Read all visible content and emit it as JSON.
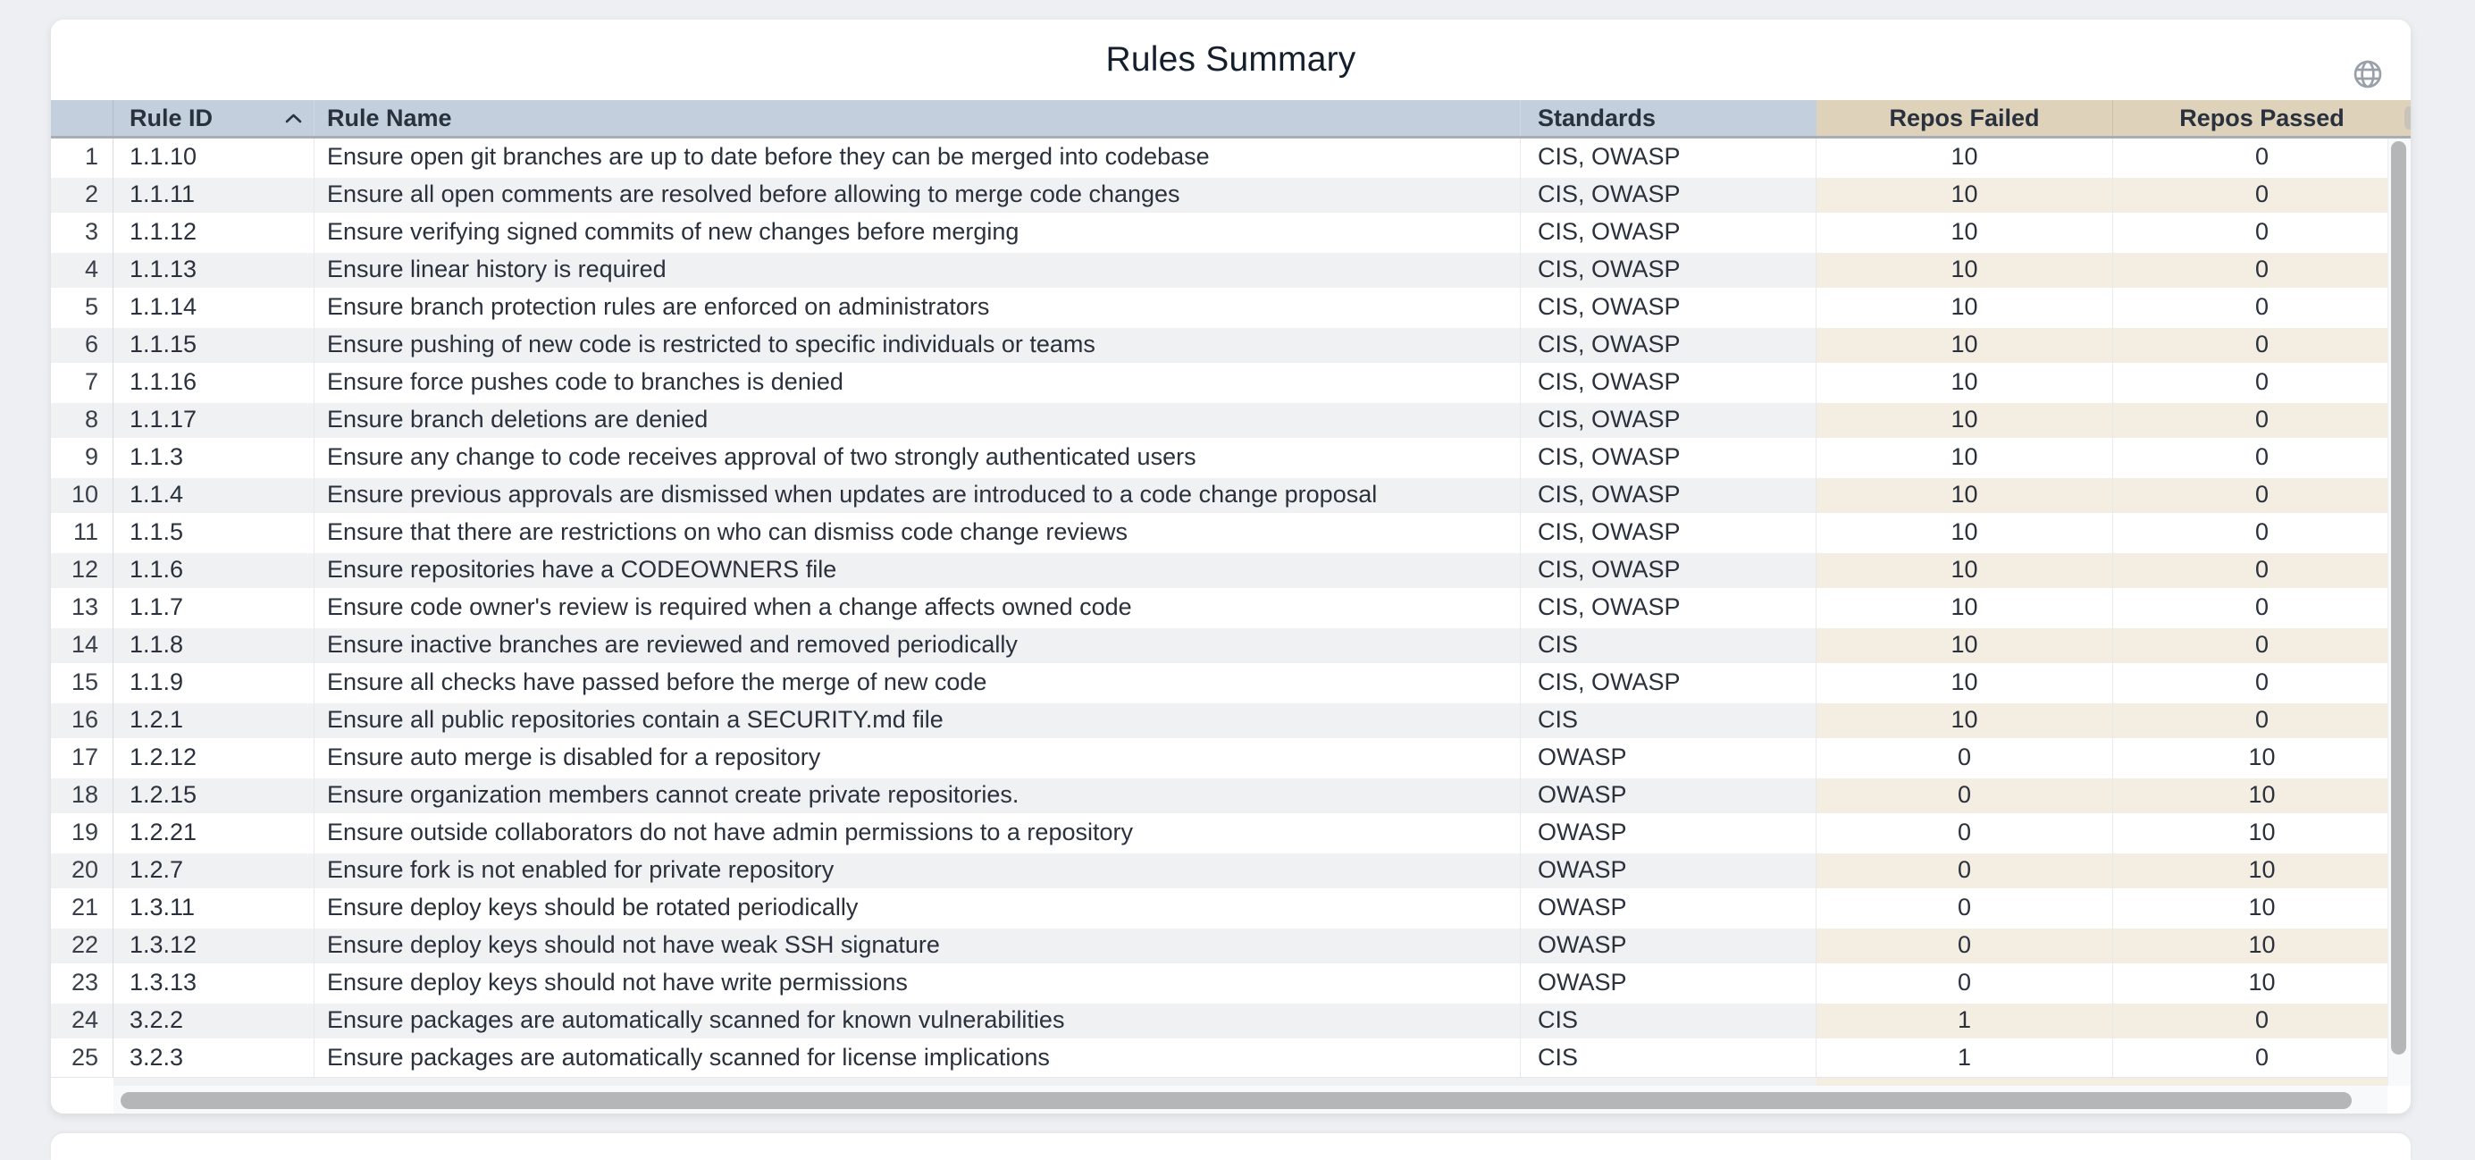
{
  "header": {
    "title": "Rules Summary",
    "globe_icon": "globe-icon"
  },
  "theme": {
    "page_bg": "#edeff2",
    "header_blue": "#c3cfdc",
    "header_tan": "#dfd2ba",
    "stripe_gray": "#f0f1f2",
    "stripe_beige": "#f4ede2",
    "scroll_thumb": "#b4b6b8",
    "title_color": "#141e2c",
    "text_color": "#2a313c"
  },
  "table": {
    "sort": {
      "column": "rule_id",
      "direction": "asc",
      "icon": "chevron-up-icon"
    },
    "columns": [
      {
        "key": "num",
        "label": ""
      },
      {
        "key": "rule_id",
        "label": "Rule ID"
      },
      {
        "key": "rule_name",
        "label": "Rule Name"
      },
      {
        "key": "standards",
        "label": "Standards"
      },
      {
        "key": "failed",
        "label": "Repos Failed"
      },
      {
        "key": "passed",
        "label": "Repos Passed"
      }
    ],
    "rows": [
      {
        "num": 1,
        "rule_id": "1.1.10",
        "rule_name": "Ensure open git branches are up to date before they can be merged into codebase",
        "standards": "CIS, OWASP",
        "failed": 10,
        "passed": 0
      },
      {
        "num": 2,
        "rule_id": "1.1.11",
        "rule_name": "Ensure all open comments are resolved before allowing to merge code changes",
        "standards": "CIS, OWASP",
        "failed": 10,
        "passed": 0
      },
      {
        "num": 3,
        "rule_id": "1.1.12",
        "rule_name": "Ensure verifying signed commits of new changes before merging",
        "standards": "CIS, OWASP",
        "failed": 10,
        "passed": 0
      },
      {
        "num": 4,
        "rule_id": "1.1.13",
        "rule_name": "Ensure linear history is required",
        "standards": "CIS, OWASP",
        "failed": 10,
        "passed": 0
      },
      {
        "num": 5,
        "rule_id": "1.1.14",
        "rule_name": "Ensure branch protection rules are enforced on administrators",
        "standards": "CIS, OWASP",
        "failed": 10,
        "passed": 0
      },
      {
        "num": 6,
        "rule_id": "1.1.15",
        "rule_name": "Ensure pushing of new code is restricted to specific individuals or teams",
        "standards": "CIS, OWASP",
        "failed": 10,
        "passed": 0
      },
      {
        "num": 7,
        "rule_id": "1.1.16",
        "rule_name": "Ensure force pushes code to branches is denied",
        "standards": "CIS, OWASP",
        "failed": 10,
        "passed": 0
      },
      {
        "num": 8,
        "rule_id": "1.1.17",
        "rule_name": "Ensure branch deletions are denied",
        "standards": "CIS, OWASP",
        "failed": 10,
        "passed": 0
      },
      {
        "num": 9,
        "rule_id": "1.1.3",
        "rule_name": "Ensure any change to code receives approval of two strongly authenticated users",
        "standards": "CIS, OWASP",
        "failed": 10,
        "passed": 0
      },
      {
        "num": 10,
        "rule_id": "1.1.4",
        "rule_name": "Ensure previous approvals are dismissed when updates are introduced to a code change proposal",
        "standards": "CIS, OWASP",
        "failed": 10,
        "passed": 0
      },
      {
        "num": 11,
        "rule_id": "1.1.5",
        "rule_name": "Ensure that there are restrictions on who can dismiss code change reviews",
        "standards": "CIS, OWASP",
        "failed": 10,
        "passed": 0
      },
      {
        "num": 12,
        "rule_id": "1.1.6",
        "rule_name": "Ensure repositories have a CODEOWNERS file",
        "standards": "CIS, OWASP",
        "failed": 10,
        "passed": 0
      },
      {
        "num": 13,
        "rule_id": "1.1.7",
        "rule_name": "Ensure code owner's review is required when a change affects owned code",
        "standards": "CIS, OWASP",
        "failed": 10,
        "passed": 0
      },
      {
        "num": 14,
        "rule_id": "1.1.8",
        "rule_name": "Ensure inactive branches are reviewed and removed periodically",
        "standards": "CIS",
        "failed": 10,
        "passed": 0
      },
      {
        "num": 15,
        "rule_id": "1.1.9",
        "rule_name": "Ensure all checks have passed before the merge of new code",
        "standards": "CIS, OWASP",
        "failed": 10,
        "passed": 0
      },
      {
        "num": 16,
        "rule_id": "1.2.1",
        "rule_name": "Ensure all public repositories contain a SECURITY.md file",
        "standards": "CIS",
        "failed": 10,
        "passed": 0
      },
      {
        "num": 17,
        "rule_id": "1.2.12",
        "rule_name": "Ensure auto merge is disabled for a repository",
        "standards": "OWASP",
        "failed": 0,
        "passed": 10
      },
      {
        "num": 18,
        "rule_id": "1.2.15",
        "rule_name": "Ensure organization members cannot create private repositories.",
        "standards": "OWASP",
        "failed": 0,
        "passed": 10
      },
      {
        "num": 19,
        "rule_id": "1.2.21",
        "rule_name": "Ensure outside collaborators do not have admin permissions to a repository",
        "standards": "OWASP",
        "failed": 0,
        "passed": 10
      },
      {
        "num": 20,
        "rule_id": "1.2.7",
        "rule_name": "Ensure fork is not enabled for private repository",
        "standards": "OWASP",
        "failed": 0,
        "passed": 10
      },
      {
        "num": 21,
        "rule_id": "1.3.11",
        "rule_name": "Ensure deploy keys should be rotated periodically",
        "standards": "OWASP",
        "failed": 0,
        "passed": 10
      },
      {
        "num": 22,
        "rule_id": "1.3.12",
        "rule_name": "Ensure deploy keys should not have weak SSH signature",
        "standards": "OWASP",
        "failed": 0,
        "passed": 10
      },
      {
        "num": 23,
        "rule_id": "1.3.13",
        "rule_name": "Ensure deploy keys should not have write permissions",
        "standards": "OWASP",
        "failed": 0,
        "passed": 10
      },
      {
        "num": 24,
        "rule_id": "3.2.2",
        "rule_name": "Ensure packages are automatically scanned for known vulnerabilities",
        "standards": "CIS",
        "failed": 1,
        "passed": 0
      },
      {
        "num": 25,
        "rule_id": "3.2.3",
        "rule_name": "Ensure packages are automatically scanned for license implications",
        "standards": "CIS",
        "failed": 1,
        "passed": 0
      }
    ]
  }
}
